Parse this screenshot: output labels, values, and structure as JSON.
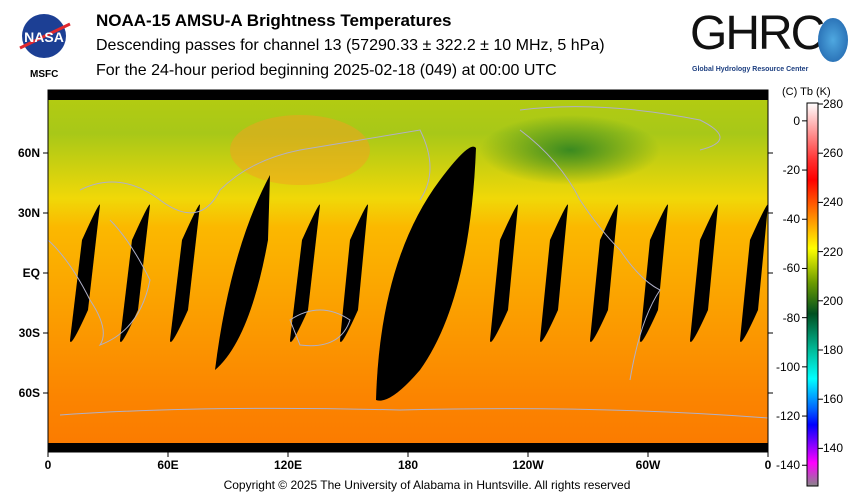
{
  "header": {
    "title": "NOAA-15 AMSU-A Brightness Temperatures",
    "subtitle1": "Descending passes for channel 13 (57290.33 ± 322.2 ± 10 MHz, 5 hPa)",
    "subtitle2": "For the 24-hour period beginning 2025-02-18 (049) at 00:00 UTC"
  },
  "logos": {
    "nasa": "NASA",
    "nasa_sub": "MSFC",
    "ghrc": "GHRC",
    "ghrc_sub": "Global Hydrology Resource Center"
  },
  "footer": "Copyright © 2025 The University of Alabama in Huntsville.  All rights reserved",
  "chart_data": {
    "type": "heatmap",
    "title": "NOAA-15 AMSU-A Brightness Temperatures",
    "x_ticks": [
      "0",
      "60E",
      "120E",
      "180",
      "120W",
      "60W",
      "0"
    ],
    "x_values": [
      0,
      60,
      120,
      180,
      240,
      300,
      360
    ],
    "y_ticks": [
      "60N",
      "30N",
      "EQ",
      "30S",
      "60S"
    ],
    "y_values": [
      60,
      30,
      0,
      -30,
      -60
    ],
    "colorbar": {
      "label_c": "(C)",
      "label_tb": "Tb",
      "label_k": "(K)",
      "k_ticks": [
        280,
        260,
        240,
        220,
        200,
        180,
        160,
        140
      ],
      "c_ticks": [
        0,
        -20,
        -40,
        -60,
        -80,
        -100,
        -120,
        -140
      ],
      "range_k": [
        125,
        281
      ]
    },
    "colors": {
      "missing": "#000000",
      "coast": "#b0b0c8"
    }
  }
}
